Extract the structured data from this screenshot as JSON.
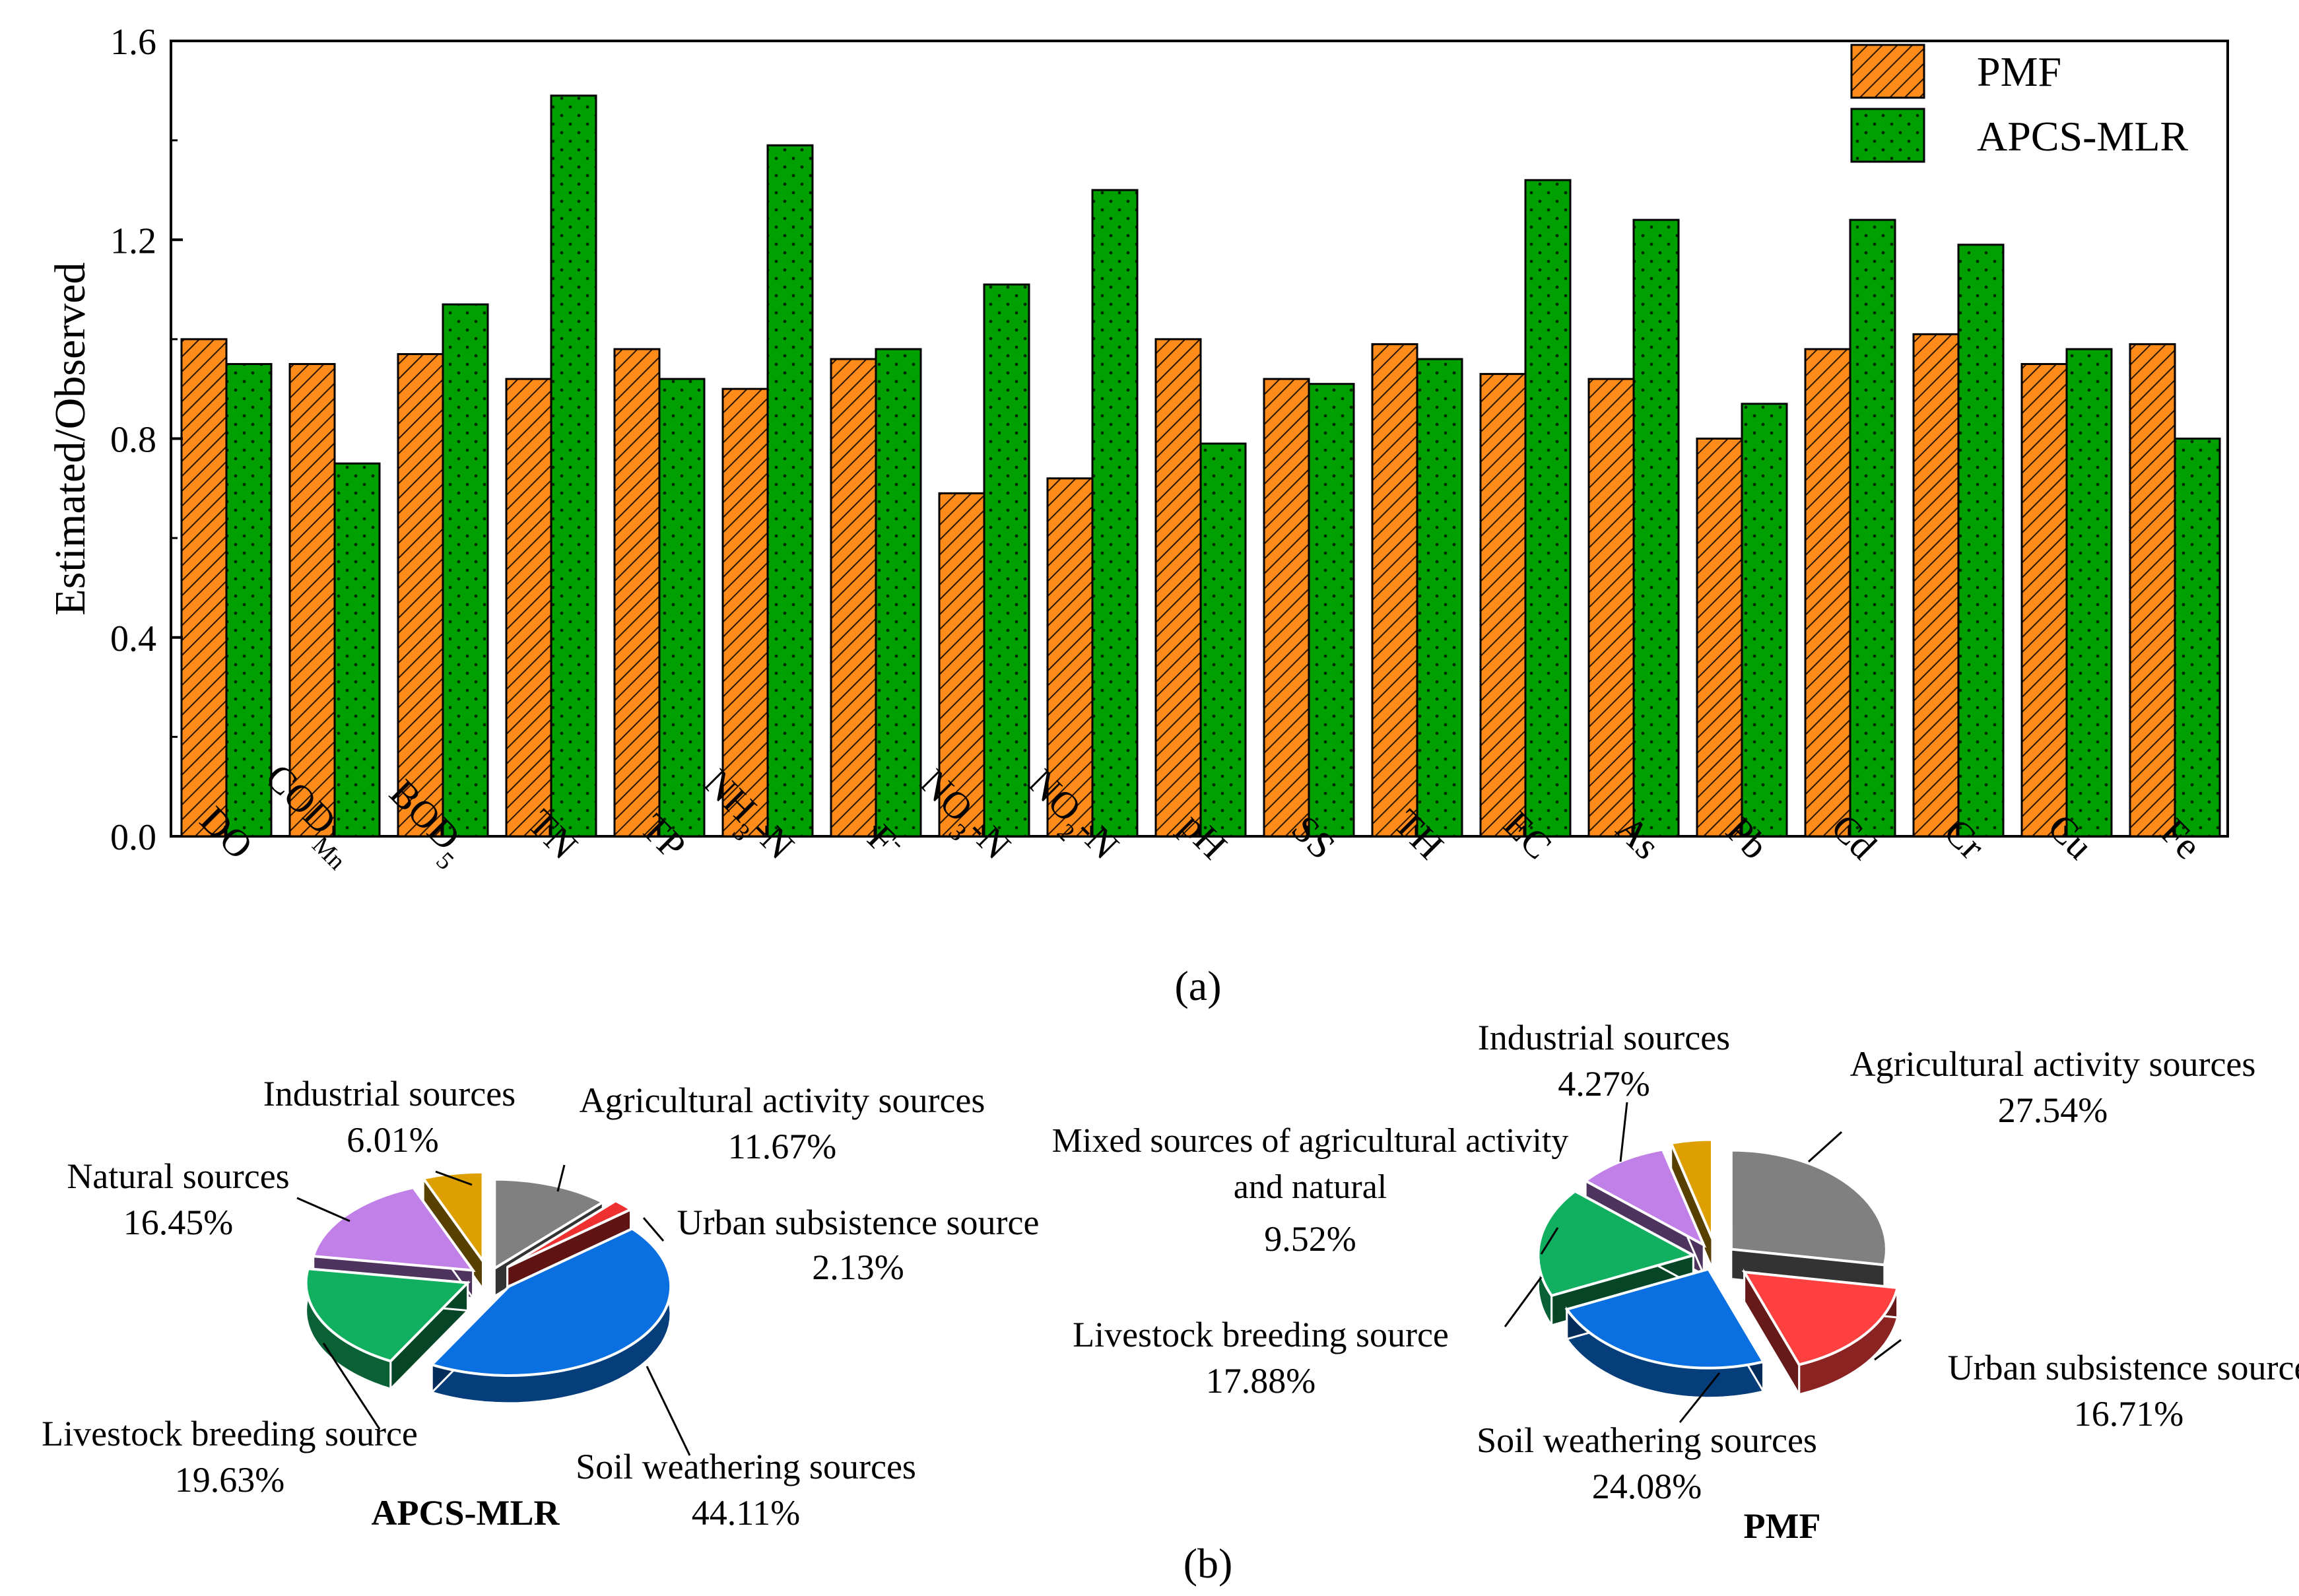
{
  "chart_data": [
    {
      "type": "bar",
      "panel_label": "(a)",
      "ylabel": "Estimated/Observed",
      "xlabel": "",
      "ylim": [
        0,
        1.6
      ],
      "yticks": [
        "0.0",
        "0.4",
        "0.8",
        "1.2",
        "1.6"
      ],
      "categories": [
        "DO",
        "COD",
        "BOD",
        "TN",
        "TP",
        "NH",
        "F",
        "NO",
        "NO",
        "pH",
        "SS",
        "TH",
        "EC",
        "As",
        "Pb",
        "Cd",
        "Cr",
        "Cu",
        "Fe"
      ],
      "category_labels": [
        {
          "main": "DO",
          "sub": "",
          "tail": "",
          "sup": ""
        },
        {
          "main": "COD",
          "sub": "Mn",
          "tail": "",
          "sup": ""
        },
        {
          "main": "BOD",
          "sub": "5",
          "tail": "",
          "sup": ""
        },
        {
          "main": "TN",
          "sub": "",
          "tail": "",
          "sup": ""
        },
        {
          "main": "TP",
          "sub": "",
          "tail": "",
          "sup": ""
        },
        {
          "main": "NH",
          "sub": "3",
          "tail": "-N",
          "sup": ""
        },
        {
          "main": "F",
          "sub": "",
          "tail": "",
          "sup": "-"
        },
        {
          "main": "NO",
          "sub": "3",
          "tail": "-N",
          "sup": ""
        },
        {
          "main": "NO",
          "sub": "2",
          "tail": "-N",
          "sup": ""
        },
        {
          "main": "pH",
          "sub": "",
          "tail": "",
          "sup": ""
        },
        {
          "main": "SS",
          "sub": "",
          "tail": "",
          "sup": ""
        },
        {
          "main": "TH",
          "sub": "",
          "tail": "",
          "sup": ""
        },
        {
          "main": "EC",
          "sub": "",
          "tail": "",
          "sup": ""
        },
        {
          "main": "As",
          "sub": "",
          "tail": "",
          "sup": ""
        },
        {
          "main": "Pb",
          "sub": "",
          "tail": "",
          "sup": ""
        },
        {
          "main": "Cd",
          "sub": "",
          "tail": "",
          "sup": ""
        },
        {
          "main": "Cr",
          "sub": "",
          "tail": "",
          "sup": ""
        },
        {
          "main": "Cu",
          "sub": "",
          "tail": "",
          "sup": ""
        },
        {
          "main": "Fe",
          "sub": "",
          "tail": "",
          "sup": ""
        }
      ],
      "series": [
        {
          "name": "PMF",
          "color": "#ff8c1a",
          "pattern": "diagonal-hatch",
          "values": [
            1.0,
            0.95,
            0.97,
            0.92,
            0.98,
            0.9,
            0.96,
            0.69,
            0.72,
            1.0,
            0.92,
            0.99,
            0.93,
            0.92,
            0.8,
            0.98,
            1.01,
            0.95,
            0.99
          ]
        },
        {
          "name": "APCS-MLR",
          "color": "#00a000",
          "pattern": "dots",
          "values": [
            0.95,
            0.75,
            1.07,
            1.49,
            0.92,
            1.39,
            0.98,
            1.11,
            1.3,
            0.79,
            0.91,
            0.96,
            1.32,
            1.24,
            0.87,
            1.24,
            1.19,
            0.98,
            0.8
          ]
        }
      ],
      "legend": "top-right",
      "grid": false
    },
    {
      "type": "pie",
      "title": "APCS-MLR",
      "slices": [
        {
          "label": "Agricultural activity sources",
          "value": 11.67,
          "pct": "11.67%",
          "color": "#808080"
        },
        {
          "label": "Urban subsistence source",
          "value": 2.13,
          "pct": "2.13%",
          "color": "#ee3030"
        },
        {
          "label": "Soil weathering sources",
          "value": 44.11,
          "pct": "44.11%",
          "color": "#0a6fe0"
        },
        {
          "label": "Livestock breeding source",
          "value": 19.63,
          "pct": "19.63%",
          "color": "#10b060"
        },
        {
          "label": "Natural sources",
          "value": 16.45,
          "pct": "16.45%",
          "color": "#c080e8"
        },
        {
          "label": "Industrial sources",
          "value": 6.01,
          "pct": "6.01%",
          "color": "#dda000"
        }
      ]
    },
    {
      "type": "pie",
      "title": "PMF",
      "slices": [
        {
          "label": "Agricultural activity sources",
          "value": 27.54,
          "pct": "27.54%",
          "color": "#808080"
        },
        {
          "label": "Urban subsistence source",
          "value": 16.71,
          "pct": "16.71%",
          "color": "#ff4040"
        },
        {
          "label": "Soil weathering sources",
          "value": 24.08,
          "pct": "24.08%",
          "color": "#0a6fe0"
        },
        {
          "label": "Livestock breeding source",
          "value": 17.88,
          "pct": "17.88%",
          "color": "#10b060"
        },
        {
          "label": "Mixed sources of agricultural activity and natural",
          "value": 9.52,
          "pct": "9.52%",
          "color": "#c080e8"
        },
        {
          "label": "Industrial sources",
          "value": 4.27,
          "pct": "4.27%",
          "color": "#dda000"
        }
      ]
    }
  ],
  "panel_b_label": "(b)"
}
